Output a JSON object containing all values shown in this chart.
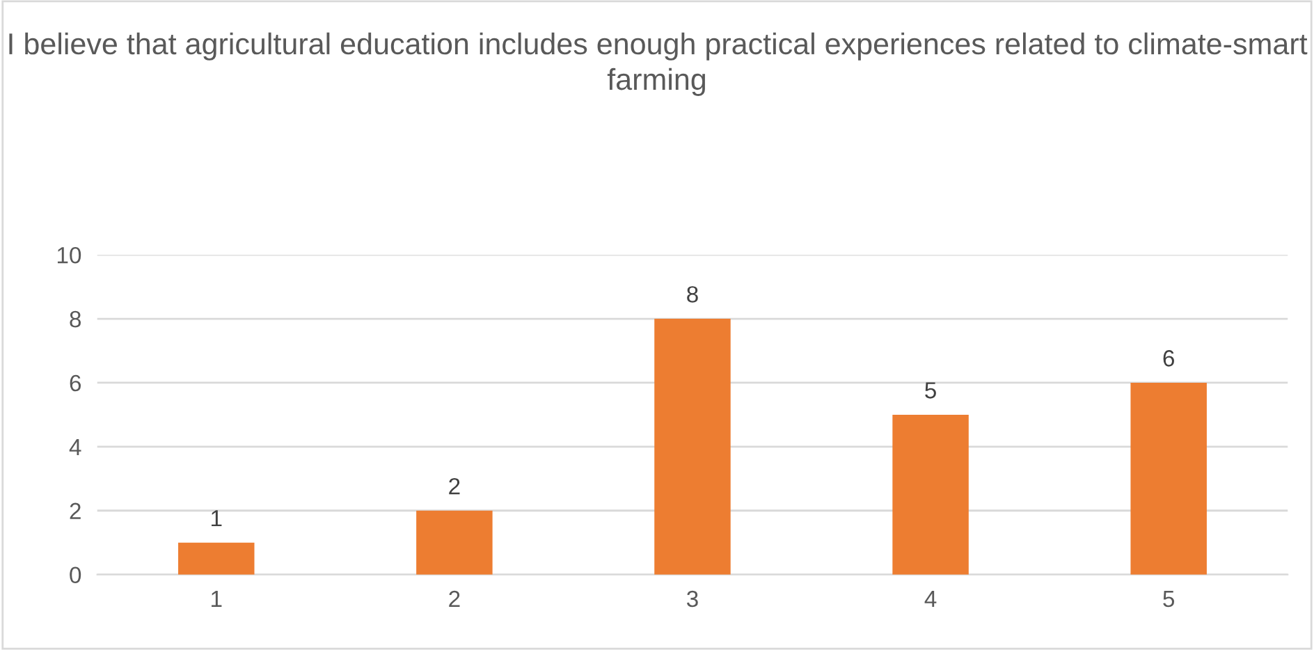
{
  "chart_data": {
    "type": "bar",
    "title": "I believe that agricultural education includes enough practical experiences related to climate-smart farming",
    "categories": [
      "1",
      "2",
      "3",
      "4",
      "5"
    ],
    "values": [
      1,
      2,
      8,
      5,
      6
    ],
    "color": "#ed7d31",
    "ylim": [
      0,
      10
    ],
    "yticks": [
      0,
      2,
      4,
      6,
      8,
      10
    ],
    "grid": "y",
    "data_labels": true,
    "legend": false
  }
}
